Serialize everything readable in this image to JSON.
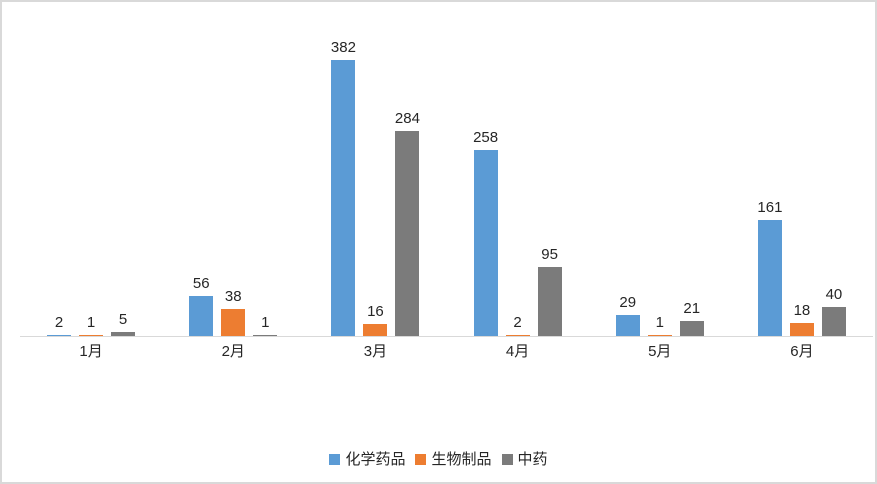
{
  "chart_data": {
    "type": "bar",
    "title": "",
    "xlabel": "",
    "ylabel": "",
    "categories": [
      "1月",
      "2月",
      "3月",
      "4月",
      "5月",
      "6月"
    ],
    "series": [
      {
        "name": "化学药品",
        "color": "#5b9bd5",
        "values": [
          2,
          56,
          382,
          258,
          29,
          161
        ]
      },
      {
        "name": "生物制品",
        "color": "#ed7d31",
        "values": [
          1,
          38,
          16,
          2,
          1,
          18
        ]
      },
      {
        "name": "中药",
        "color": "#7b7b7b",
        "values": [
          5,
          1,
          284,
          95,
          21,
          40
        ]
      }
    ],
    "ylim": [
      0,
      462
    ],
    "grid": false,
    "y_axis_visible": false,
    "data_labels": true,
    "legend_position": "bottom"
  },
  "frame": {
    "background_color": "#ffffff",
    "border_color": "#d9d9d9",
    "axis_line_color": "#d9d9d9",
    "label_color": "#262626"
  }
}
